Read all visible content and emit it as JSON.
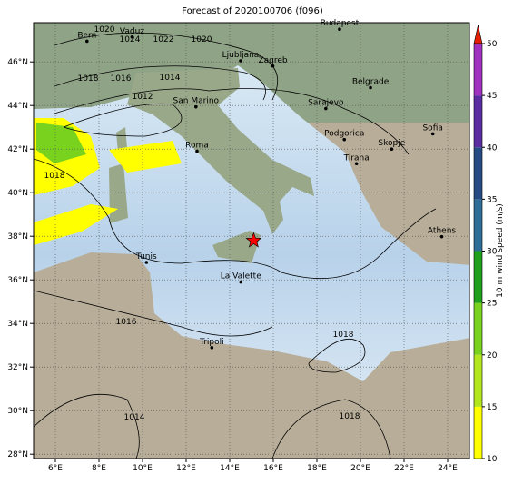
{
  "map": {
    "title": "Forecast of 2020100706 (f096)",
    "lon_range": [
      5,
      25
    ],
    "lat_range": [
      27.8,
      47.8
    ],
    "lon_ticks": [
      {
        "value": 6,
        "label": "6°E"
      },
      {
        "value": 8,
        "label": "8°E"
      },
      {
        "value": 10,
        "label": "10°E"
      },
      {
        "value": 12,
        "label": "12°E"
      },
      {
        "value": 14,
        "label": "14°E"
      },
      {
        "value": 16,
        "label": "16°E"
      },
      {
        "value": 18,
        "label": "18°E"
      },
      {
        "value": 20,
        "label": "20°E"
      },
      {
        "value": 22,
        "label": "22°E"
      },
      {
        "value": 24,
        "label": "24°E"
      }
    ],
    "lat_ticks": [
      {
        "value": 28,
        "label": "28°N"
      },
      {
        "value": 30,
        "label": "30°N"
      },
      {
        "value": 32,
        "label": "32°N"
      },
      {
        "value": 34,
        "label": "34°N"
      },
      {
        "value": 36,
        "label": "36°N"
      },
      {
        "value": 38,
        "label": "38°N"
      },
      {
        "value": 40,
        "label": "40°N"
      },
      {
        "value": 42,
        "label": "42°N"
      },
      {
        "value": 44,
        "label": "44°N"
      },
      {
        "value": 46,
        "label": "46°N"
      }
    ],
    "cities": [
      {
        "name": "Bern",
        "lon": 7.45,
        "lat": 46.95
      },
      {
        "name": "Vaduz",
        "lon": 9.52,
        "lat": 47.14
      },
      {
        "name": "Budapest",
        "lon": 19.04,
        "lat": 47.5
      },
      {
        "name": "Ljubljana",
        "lon": 14.5,
        "lat": 46.05
      },
      {
        "name": "Zagreb",
        "lon": 15.98,
        "lat": 45.81
      },
      {
        "name": "Belgrade",
        "lon": 20.46,
        "lat": 44.82
      },
      {
        "name": "San Marino",
        "lon": 12.45,
        "lat": 43.94
      },
      {
        "name": "Sarajevo",
        "lon": 18.41,
        "lat": 43.86
      },
      {
        "name": "Roma",
        "lon": 12.5,
        "lat": 41.9
      },
      {
        "name": "Podgorica",
        "lon": 19.26,
        "lat": 42.44
      },
      {
        "name": "Skopje",
        "lon": 21.43,
        "lat": 42.0
      },
      {
        "name": "Sofia",
        "lon": 23.32,
        "lat": 42.7
      },
      {
        "name": "Tirana",
        "lon": 19.82,
        "lat": 41.33
      },
      {
        "name": "Athens",
        "lon": 23.73,
        "lat": 37.98
      },
      {
        "name": "Tunis",
        "lon": 10.18,
        "lat": 36.8
      },
      {
        "name": "La Valette",
        "lon": 14.51,
        "lat": 35.9
      },
      {
        "name": "Tripoli",
        "lon": 13.18,
        "lat": 32.89
      }
    ],
    "star": {
      "lon": 15.1,
      "lat": 37.8,
      "color": "#ff0000"
    },
    "contour_labels": [
      "1020",
      "1024",
      "1022",
      "1020",
      "1018",
      "1016",
      "1014",
      "1012",
      "1018",
      "1016",
      "1014",
      "1018",
      "1018"
    ],
    "colorbar": {
      "label": "10 m wind speed (m/s)",
      "range": [
        10,
        50
      ],
      "ticks": [
        10,
        15,
        20,
        25,
        30,
        35,
        40,
        45,
        50
      ],
      "colors": [
        "#ffff00",
        "#b4e61e",
        "#78d21e",
        "#1ea01e",
        "#2e6e96",
        "#264a82",
        "#5a2ea0",
        "#a032c0"
      ],
      "extend_color": "#e61e00"
    }
  }
}
